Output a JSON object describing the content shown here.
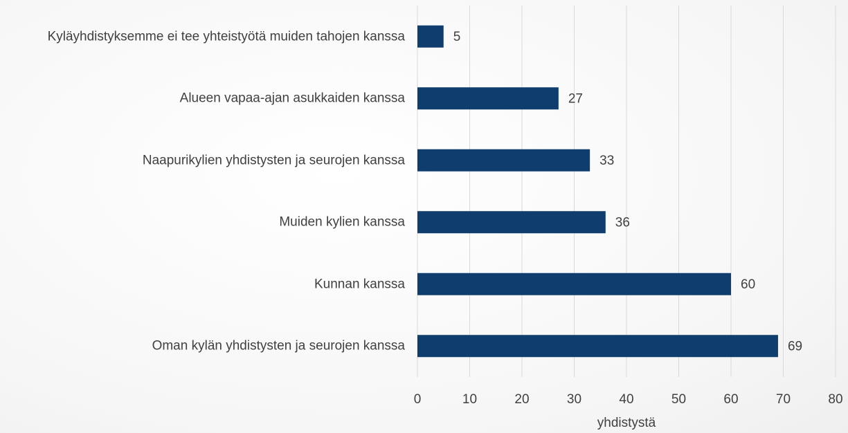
{
  "chart_data": {
    "type": "bar",
    "orientation": "horizontal",
    "categories": [
      "Kyläyhdistyksemme ei tee yhteistyötä muiden tahojen kanssa",
      "Alueen vapaa-ajan asukkaiden kanssa",
      "Naapurikylien yhdistysten ja seurojen kanssa",
      "Muiden kylien kanssa",
      "Kunnan kanssa",
      "Oman kylän yhdistysten ja seurojen kanssa"
    ],
    "values": [
      5,
      27,
      33,
      36,
      60,
      69
    ],
    "color": "#0e3d6e",
    "xlabel": "yhdistystä",
    "xlim": [
      0,
      80
    ],
    "xticks": [
      0,
      10,
      20,
      30,
      40,
      50,
      60,
      70,
      80
    ],
    "grid": true
  }
}
